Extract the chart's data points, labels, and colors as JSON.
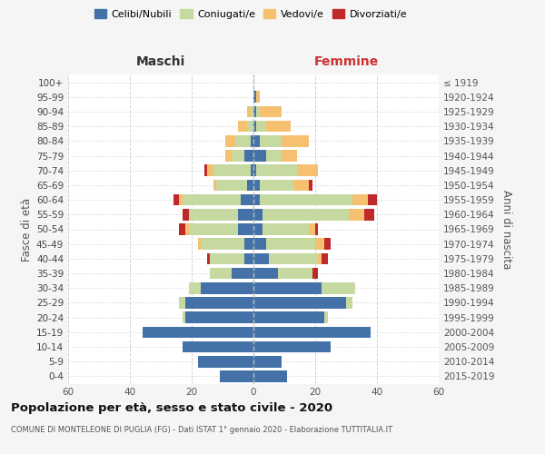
{
  "age_groups": [
    "0-4",
    "5-9",
    "10-14",
    "15-19",
    "20-24",
    "25-29",
    "30-34",
    "35-39",
    "40-44",
    "45-49",
    "50-54",
    "55-59",
    "60-64",
    "65-69",
    "70-74",
    "75-79",
    "80-84",
    "85-89",
    "90-94",
    "95-99",
    "100+"
  ],
  "birth_years": [
    "2015-2019",
    "2010-2014",
    "2005-2009",
    "2000-2004",
    "1995-1999",
    "1990-1994",
    "1985-1989",
    "1980-1984",
    "1975-1979",
    "1970-1974",
    "1965-1969",
    "1960-1964",
    "1955-1959",
    "1950-1954",
    "1945-1949",
    "1940-1944",
    "1935-1939",
    "1930-1934",
    "1925-1929",
    "1920-1924",
    "≤ 1919"
  ],
  "colors": {
    "celibi": "#4472a8",
    "coniugati": "#c5d9a0",
    "vedovi": "#f5c070",
    "divorziati": "#c0292a"
  },
  "legend_labels": [
    "Celibi/Nubili",
    "Coniugati/e",
    "Vedovi/e",
    "Divorziati/e"
  ],
  "legend_colors": [
    "#4472a8",
    "#c5d9a0",
    "#f5c070",
    "#c0292a"
  ],
  "males_celibi": [
    11,
    18,
    23,
    36,
    22,
    22,
    17,
    7,
    3,
    3,
    5,
    5,
    4,
    2,
    1,
    3,
    1,
    0,
    0,
    0,
    0
  ],
  "males_coniugati": [
    0,
    0,
    0,
    0,
    1,
    2,
    4,
    7,
    11,
    14,
    16,
    16,
    19,
    10,
    12,
    4,
    5,
    2,
    1,
    0,
    0
  ],
  "males_vedovi": [
    0,
    0,
    0,
    0,
    0,
    0,
    0,
    0,
    0,
    1,
    1,
    0,
    1,
    1,
    2,
    2,
    3,
    3,
    1,
    0,
    0
  ],
  "males_divorziati": [
    0,
    0,
    0,
    0,
    0,
    0,
    0,
    0,
    1,
    0,
    2,
    2,
    2,
    0,
    1,
    0,
    0,
    0,
    0,
    0,
    0
  ],
  "females_nubili": [
    11,
    9,
    25,
    38,
    23,
    30,
    22,
    8,
    5,
    4,
    3,
    3,
    2,
    2,
    1,
    4,
    2,
    1,
    1,
    1,
    0
  ],
  "females_coniugate": [
    0,
    0,
    0,
    0,
    1,
    2,
    11,
    11,
    16,
    16,
    15,
    28,
    30,
    11,
    13,
    5,
    7,
    3,
    1,
    0,
    0
  ],
  "females_vedove": [
    0,
    0,
    0,
    0,
    0,
    0,
    0,
    0,
    1,
    3,
    2,
    5,
    5,
    5,
    7,
    5,
    9,
    8,
    7,
    1,
    0
  ],
  "females_divorziate": [
    0,
    0,
    0,
    0,
    0,
    0,
    0,
    2,
    2,
    2,
    1,
    3,
    3,
    1,
    0,
    0,
    0,
    0,
    0,
    0,
    0
  ],
  "xlim": 60,
  "title": "Popolazione per età, sesso e stato civile - 2020",
  "subtitle": "COMUNE DI MONTELEONE DI PUGLIA (FG) - Dati ISTAT 1° gennaio 2020 - Elaborazione TUTTITALIA.IT",
  "label_maschi": "Maschi",
  "label_femmine": "Femmine",
  "ylabel_left": "Fasce di età",
  "ylabel_right": "Anni di nascita",
  "bg_color": "#f5f5f5",
  "plot_bg": "#ffffff",
  "grid_color": "#cccccc",
  "maschi_color": "#333333",
  "femmine_color": "#cc3333"
}
